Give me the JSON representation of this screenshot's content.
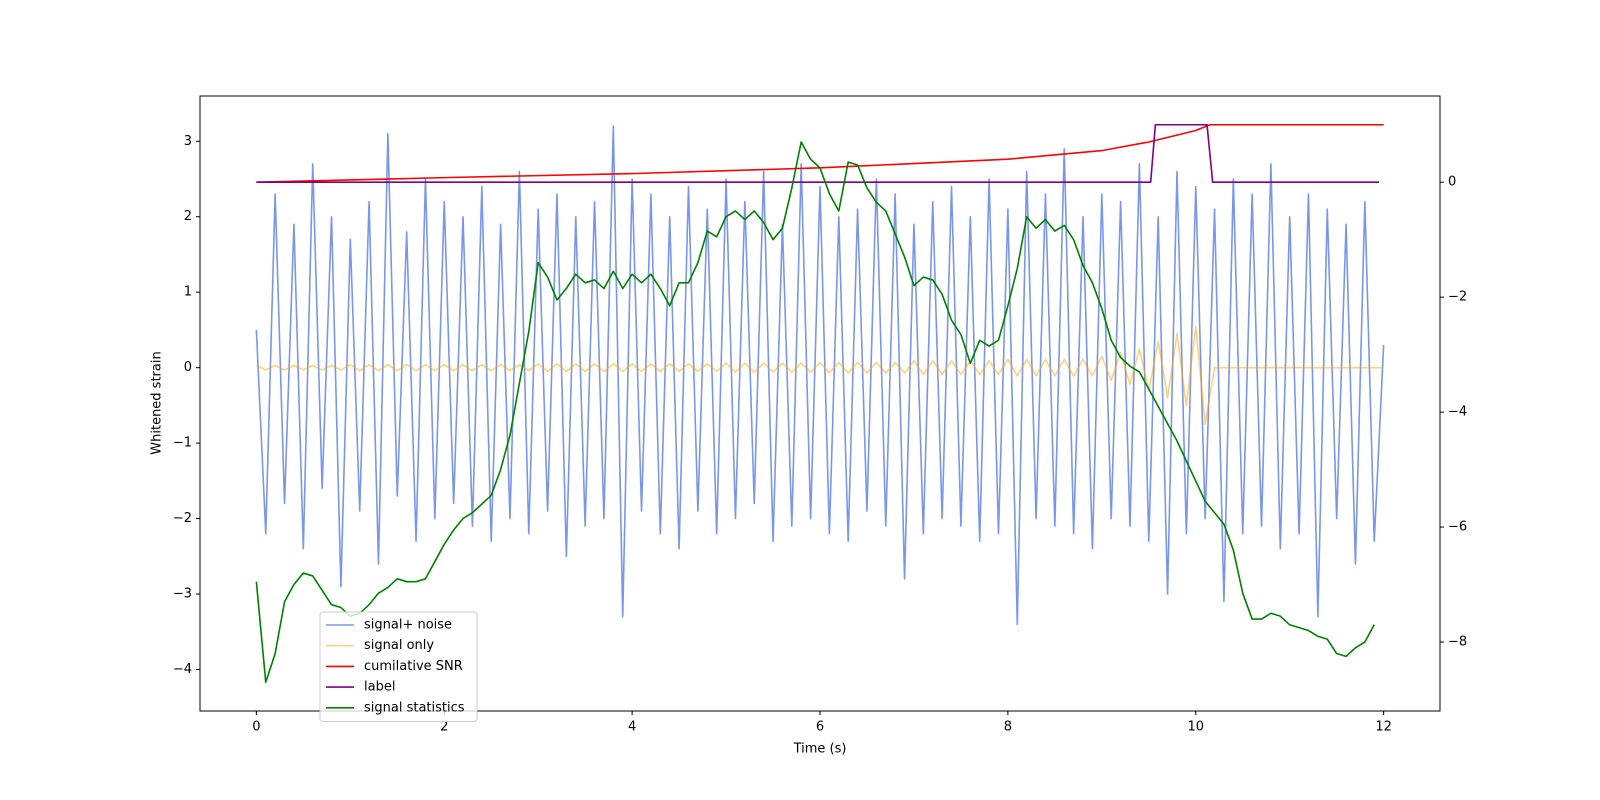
{
  "chart_data": {
    "type": "line",
    "xlabel": "Time (s)",
    "ylabel": "Whitened strain",
    "xlim": [
      -0.6,
      12.6
    ],
    "ylim": [
      -4.55,
      3.6
    ],
    "y2lim": [
      -9.2,
      1.5
    ],
    "xticks": [
      0,
      2,
      4,
      6,
      8,
      10,
      12
    ],
    "yticks": [
      {
        "value": -4,
        "label": "−4"
      },
      {
        "value": -3,
        "label": "−3"
      },
      {
        "value": -2,
        "label": "−2"
      },
      {
        "value": -1,
        "label": "−1"
      },
      0,
      1,
      2,
      3
    ],
    "y2ticks": [
      {
        "value": -8,
        "label": "−8"
      },
      {
        "value": -6,
        "label": "−6"
      },
      {
        "value": -4,
        "label": "−4"
      },
      {
        "value": -2,
        "label": "−2"
      },
      0
    ],
    "legend": "lower left",
    "x": [
      0,
      0.1,
      0.2,
      0.3,
      0.4,
      0.5,
      0.6,
      0.7,
      0.8,
      0.9,
      1,
      1.1,
      1.2,
      1.3,
      1.4,
      1.5,
      1.6,
      1.7,
      1.8,
      1.9,
      2,
      2.1,
      2.2,
      2.3,
      2.4,
      2.5,
      2.6,
      2.7,
      2.8,
      2.9,
      3,
      3.1,
      3.2,
      3.3,
      3.4,
      3.5,
      3.6,
      3.7,
      3.8,
      3.9,
      4,
      4.1,
      4.2,
      4.3,
      4.4,
      4.5,
      4.6,
      4.7,
      4.8,
      4.9,
      5,
      5.1,
      5.2,
      5.3,
      5.4,
      5.5,
      5.6,
      5.7,
      5.8,
      5.9,
      6,
      6.1,
      6.2,
      6.3,
      6.4,
      6.5,
      6.6,
      6.7,
      6.8,
      6.9,
      7,
      7.1,
      7.2,
      7.3,
      7.4,
      7.5,
      7.6,
      7.7,
      7.8,
      7.9,
      8,
      8.1,
      8.2,
      8.3,
      8.4,
      8.5,
      8.6,
      8.7,
      8.8,
      8.9,
      9,
      9.1,
      9.2,
      9.3,
      9.4,
      9.5,
      9.6,
      9.7,
      9.8,
      9.9,
      10,
      10.1,
      10.2,
      10.3,
      10.4,
      10.5,
      10.6,
      10.7,
      10.8,
      10.9,
      11,
      11.1,
      11.2,
      11.3,
      11.4,
      11.5,
      11.6,
      11.7,
      11.8,
      11.9,
      12
    ],
    "series": [
      {
        "name": "signal+ noise",
        "color": "#4169e1",
        "alpha": 0.7,
        "values": [
          0.5,
          -2.2,
          2.3,
          -1.8,
          1.9,
          -2.4,
          2.7,
          -1.6,
          2.0,
          -2.9,
          1.7,
          -1.9,
          2.2,
          -2.6,
          3.1,
          -1.7,
          1.8,
          -2.3,
          2.5,
          -2.0,
          2.2,
          -1.8,
          2.0,
          -2.1,
          2.4,
          -2.3,
          1.9,
          -2.0,
          2.6,
          -2.2,
          2.1,
          -1.9,
          2.3,
          -2.5,
          2.0,
          -2.1,
          2.2,
          -2.0,
          3.2,
          -3.3,
          2.5,
          -1.9,
          2.3,
          -2.2,
          2.0,
          -2.4,
          2.4,
          -1.9,
          2.1,
          -2.2,
          2.5,
          -2.0,
          2.2,
          -1.8,
          2.6,
          -2.3,
          1.9,
          -2.1,
          2.7,
          -2.0,
          2.4,
          -2.2,
          2.0,
          -2.3,
          2.1,
          -1.9,
          2.5,
          -2.1,
          2.3,
          -2.8,
          1.9,
          -2.2,
          2.2,
          -2.0,
          2.4,
          -2.1,
          2.0,
          -2.3,
          2.5,
          -2.2,
          2.1,
          -3.4,
          2.6,
          -2.0,
          2.3,
          -2.1,
          2.9,
          -2.2,
          2.0,
          -2.4,
          2.3,
          -2.0,
          2.2,
          -2.1,
          2.7,
          -2.3,
          2.0,
          -3.0,
          2.6,
          -2.2,
          2.4,
          -2.0,
          2.1,
          -3.1,
          2.5,
          -2.2,
          2.3,
          -2.1,
          2.7,
          -2.4,
          2.0,
          -2.2,
          2.3,
          -3.3,
          2.1,
          -2.0,
          1.9,
          -2.6,
          2.2,
          -2.3,
          0.3
        ]
      },
      {
        "name": "signal only",
        "color": "#ffa500",
        "alpha": 0.5,
        "values": [
          0.03,
          -0.03,
          0.03,
          -0.03,
          0.03,
          -0.03,
          0.03,
          -0.03,
          0.03,
          -0.03,
          0.04,
          -0.04,
          0.04,
          -0.04,
          0.04,
          -0.04,
          0.04,
          -0.04,
          0.04,
          -0.04,
          0.04,
          -0.04,
          0.04,
          -0.04,
          0.04,
          -0.04,
          0.04,
          -0.04,
          0.04,
          -0.04,
          0.05,
          -0.05,
          0.05,
          -0.05,
          0.05,
          -0.05,
          0.05,
          -0.05,
          0.05,
          -0.05,
          0.05,
          -0.05,
          0.05,
          -0.05,
          0.05,
          -0.05,
          0.05,
          -0.05,
          0.05,
          -0.05,
          0.06,
          -0.06,
          0.06,
          -0.06,
          0.06,
          -0.06,
          0.06,
          -0.06,
          0.06,
          -0.06,
          0.07,
          -0.07,
          0.07,
          -0.07,
          0.07,
          -0.07,
          0.07,
          -0.07,
          0.07,
          -0.07,
          0.09,
          -0.09,
          0.09,
          -0.09,
          0.09,
          -0.09,
          0.09,
          -0.09,
          0.09,
          -0.09,
          0.11,
          -0.11,
          0.11,
          -0.11,
          0.11,
          -0.11,
          0.11,
          -0.11,
          0.11,
          -0.11,
          0.15,
          -0.17,
          0.2,
          -0.22,
          0.25,
          -0.3,
          0.35,
          -0.4,
          0.45,
          -0.5,
          0.55,
          -0.75,
          0,
          0,
          0,
          0,
          0,
          0,
          0,
          0,
          0,
          0,
          0,
          0,
          0,
          0,
          0,
          0,
          0,
          0,
          0
        ]
      },
      {
        "name": "cumilative SNR",
        "color": "#ff0000",
        "axis": "y2",
        "x": [
          0,
          2,
          4,
          6,
          8,
          9,
          9.5,
          10,
          10.15,
          12
        ],
        "values": [
          0,
          0.08,
          0.15,
          0.25,
          0.4,
          0.55,
          0.7,
          0.9,
          1.0,
          1.0
        ]
      },
      {
        "name": "label",
        "color": "#800080",
        "axis": "y2",
        "x": [
          0,
          9.52,
          9.57,
          10.12,
          10.18,
          11.95
        ],
        "values": [
          0,
          0,
          1,
          1,
          0,
          0
        ]
      },
      {
        "name": "signal statistics",
        "color": "#008000",
        "axis": "y2",
        "values": [
          -6.95,
          -8.7,
          -8.2,
          -7.3,
          -7.0,
          -6.8,
          -6.85,
          -7.1,
          -7.35,
          -7.4,
          -7.55,
          -7.5,
          -7.35,
          -7.15,
          -7.05,
          -6.9,
          -6.95,
          -6.95,
          -6.9,
          -6.6,
          -6.3,
          -6.05,
          -5.85,
          -5.75,
          -5.6,
          -5.45,
          -5.0,
          -4.4,
          -3.5,
          -2.6,
          -1.4,
          -1.65,
          -2.05,
          -1.85,
          -1.6,
          -1.75,
          -1.7,
          -1.85,
          -1.55,
          -1.85,
          -1.6,
          -1.75,
          -1.6,
          -1.85,
          -2.15,
          -1.75,
          -1.75,
          -1.4,
          -0.85,
          -0.95,
          -0.6,
          -0.5,
          -0.65,
          -0.5,
          -0.7,
          -1.0,
          -0.8,
          -0.1,
          0.7,
          0.4,
          0.25,
          -0.2,
          -0.5,
          0.35,
          0.3,
          -0.1,
          -0.35,
          -0.5,
          -0.9,
          -1.3,
          -1.8,
          -1.65,
          -1.7,
          -1.95,
          -2.4,
          -2.65,
          -3.15,
          -2.75,
          -2.85,
          -2.75,
          -2.15,
          -1.5,
          -0.6,
          -0.8,
          -0.65,
          -0.85,
          -0.75,
          -1.0,
          -1.45,
          -1.75,
          -2.2,
          -2.75,
          -3.05,
          -3.2,
          -3.3,
          -3.6,
          -3.9,
          -4.2,
          -4.5,
          -4.85,
          -5.2,
          -5.55,
          -5.75,
          -5.95,
          -6.4,
          -7.15,
          -7.6,
          -7.6,
          -7.5,
          -7.55,
          -7.7,
          -7.75,
          -7.8,
          -7.9,
          -7.95,
          -8.2,
          -8.25,
          -8.1,
          -8.0,
          -7.7,
          null
        ]
      }
    ]
  }
}
